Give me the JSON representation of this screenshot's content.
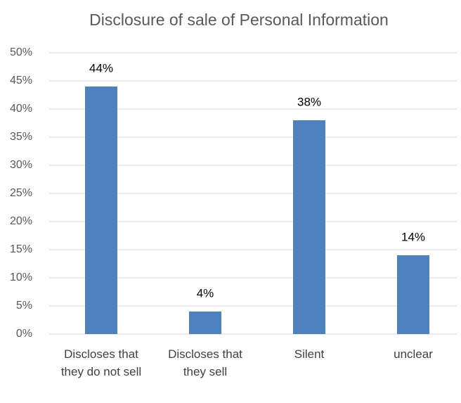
{
  "chart_data": {
    "type": "bar",
    "title": "Disclosure of sale of Personal Information",
    "categories": [
      "Discloses that they do not sell",
      "Discloses that they sell",
      "Silent",
      "unclear"
    ],
    "values": [
      44,
      4,
      38,
      14
    ],
    "value_labels": [
      "44%",
      "4%",
      "38%",
      "14%"
    ],
    "color": "#4f81bd",
    "ylim": [
      0,
      50
    ],
    "yticks": [
      {
        "value": 0,
        "label": "0%"
      },
      {
        "value": 5,
        "label": "5%"
      },
      {
        "value": 10,
        "label": "10%"
      },
      {
        "value": 15,
        "label": "15%"
      },
      {
        "value": 20,
        "label": "20%"
      },
      {
        "value": 25,
        "label": "25%"
      },
      {
        "value": 30,
        "label": "30%"
      },
      {
        "value": 35,
        "label": "35%"
      },
      {
        "value": 40,
        "label": "40%"
      },
      {
        "value": 45,
        "label": "45%"
      },
      {
        "value": 50,
        "label": "50%"
      }
    ],
    "grid": true
  }
}
